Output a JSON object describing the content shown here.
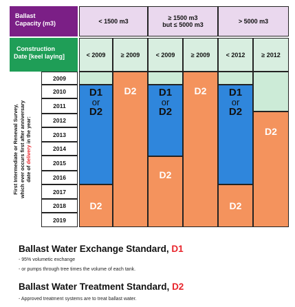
{
  "header": {
    "ballast_title": "Ballast",
    "ballast_unit": "Capacity (m3)",
    "cap_1": "< 1500 m3",
    "cap_2_line1": "≥ 1500 m3",
    "cap_2_line2": "but ≤ 5000 m3",
    "cap_3": "> 5000 m3",
    "construction_title": "Construction",
    "construction_sub": "Date  [keel laying]",
    "dates": [
      "< 2009",
      "≥ 2009",
      "< 2009",
      "≥ 2009",
      "< 2012",
      "≥ 2012"
    ]
  },
  "side_label": {
    "line1": "First Intermediate or Renewal Survey,",
    "line2": "which ever occurs first after anniversary",
    "line3_pre": "date of ",
    "line3_red": "delivery",
    "line3_post": " in the year:"
  },
  "years": [
    "2009",
    "2010",
    "2011",
    "2012",
    "2013",
    "2014",
    "2015",
    "2016",
    "2017",
    "2018",
    "2019"
  ],
  "blocks": {
    "d1": "D1",
    "or": "or",
    "d2": "D2"
  },
  "legend": {
    "d1_title": "Ballast Water Exchange Standard, ",
    "d1_code": "D1",
    "d1_note1": "- 95% volumetic exchange",
    "d1_note2": "- or pumps through tree times the volume of each tank.",
    "d2_title": "Ballast Water Treatment Standard, ",
    "d2_code": "D2",
    "d2_note1": "- Approved treatment systems are to treat ballast water."
  },
  "colors": {
    "purple": "#7b1f86",
    "green": "#1f9e57",
    "blue": "#2f86dc",
    "orange": "#f4935d",
    "mint": "#ccebd7",
    "red": "#e8242b"
  }
}
